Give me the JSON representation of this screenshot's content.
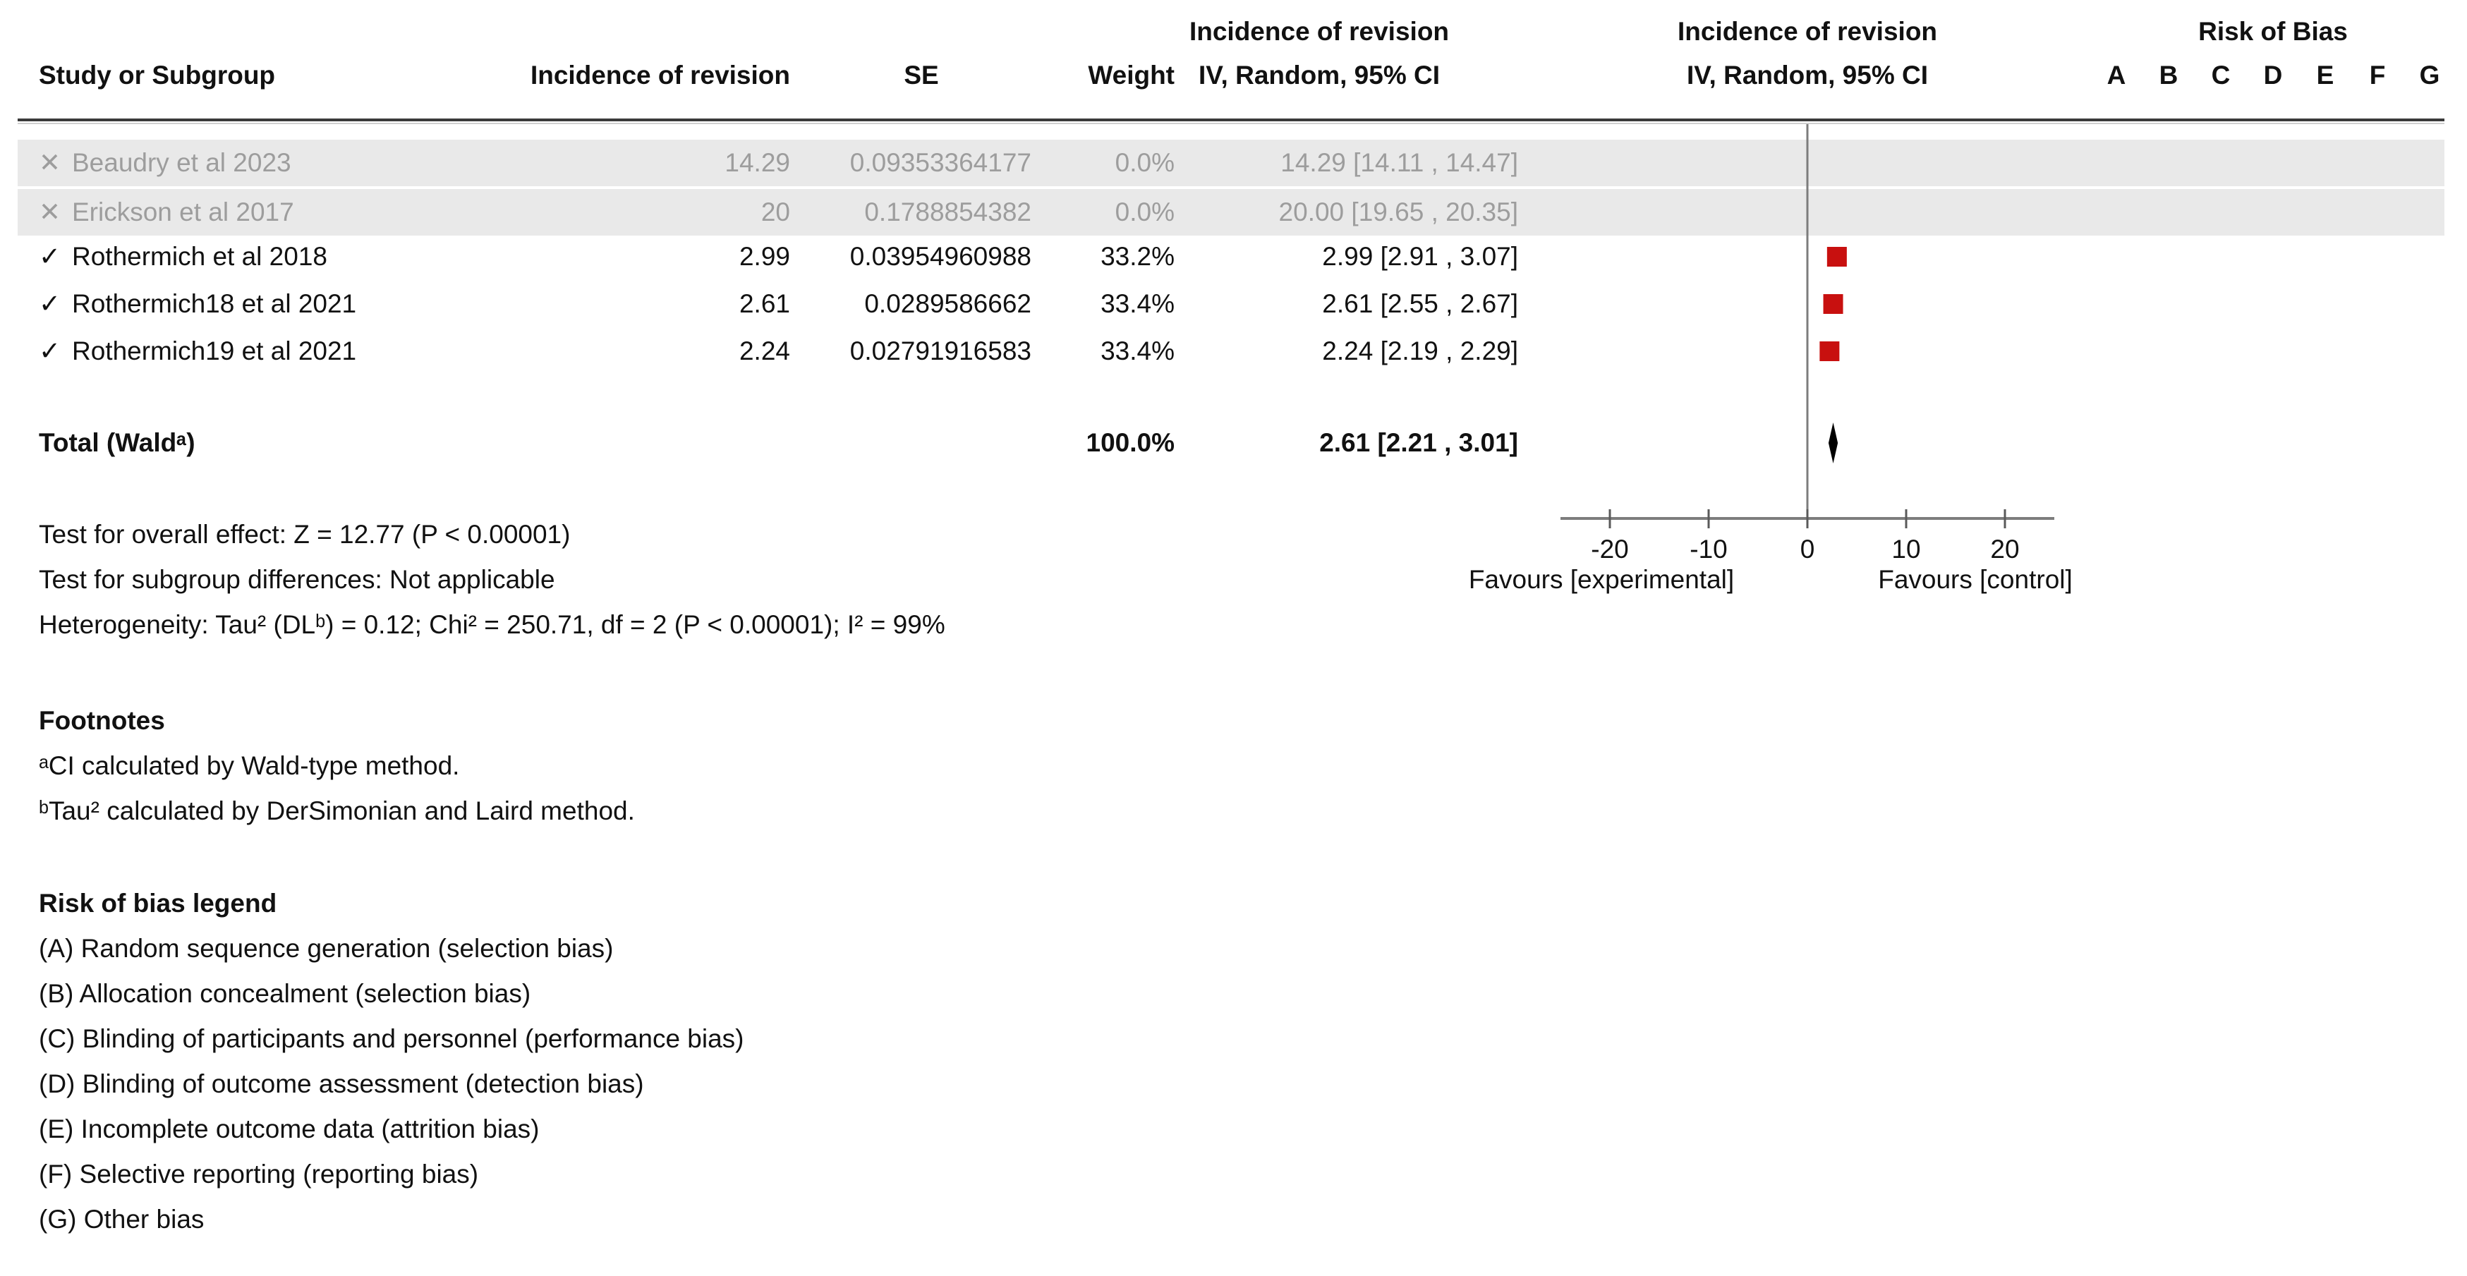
{
  "table": {
    "headers": {
      "study": "Study or Subgroup",
      "effect": "Incidence of revision",
      "se": "SE",
      "weight": "Weight",
      "ci_line1": "Incidence of revision",
      "ci_line2": "IV, Random, 95% CI",
      "plot_line1": "Incidence of revision",
      "plot_line2": "IV, Random, 95% CI",
      "rob_title": "Risk of Bias",
      "rob_columns": [
        "A",
        "B",
        "C",
        "D",
        "E",
        "F",
        "G"
      ]
    },
    "rows": [
      {
        "marker": "✕",
        "name": "Beaudry et al 2023",
        "effect": "14.29",
        "se": "0.09353364177",
        "weight": "0.0%",
        "ci": "14.29 [14.11 , 14.47]",
        "excluded": true
      },
      {
        "marker": "✕",
        "name": "Erickson et al 2017",
        "effect": "20",
        "se": "0.1788854382",
        "weight": "0.0%",
        "ci": "20.00 [19.65 , 20.35]",
        "excluded": true
      },
      {
        "marker": "✓",
        "name": "Rothermich et al 2018",
        "effect": "2.99",
        "se": "0.03954960988",
        "weight": "33.2%",
        "ci": "2.99 [2.91 , 3.07]",
        "excluded": false
      },
      {
        "marker": "✓",
        "name": "Rothermich18 et al 2021",
        "effect": "2.61",
        "se": "0.0289586662",
        "weight": "33.4%",
        "ci": "2.61 [2.55 , 2.67]",
        "excluded": false
      },
      {
        "marker": "✓",
        "name": "Rothermich19 et al 2021",
        "effect": "2.24",
        "se": "0.02791916583",
        "weight": "33.4%",
        "ci": "2.24 [2.19 , 2.29]",
        "excluded": false
      }
    ],
    "total": {
      "label": "Total (Waldᵃ)",
      "weight": "100.0%",
      "ci": "2.61 [2.21 , 3.01]"
    }
  },
  "stats": [
    "Test for overall effect: Z = 12.77 (P < 0.00001)",
    "Test for subgroup differences: Not applicable",
    "Heterogeneity: Tau² (DLᵇ) = 0.12; Chi² = 250.71, df = 2 (P < 0.00001); I² = 99%"
  ],
  "axis": {
    "ticks": [
      -20,
      -10,
      0,
      10,
      20
    ],
    "favours_left": "Favours [experimental]",
    "favours_right": "Favours [control]"
  },
  "footnotes": {
    "title": "Footnotes",
    "items": [
      "ᵃCI calculated by Wald-type method.",
      "ᵇTau² calculated by DerSimonian and Laird method."
    ]
  },
  "rob_legend": {
    "title": "Risk of bias legend",
    "items": [
      "(A) Random sequence generation (selection bias)",
      "(B) Allocation concealment (selection bias)",
      "(C) Blinding of participants and personnel (performance bias)",
      "(D) Blinding of outcome assessment (detection bias)",
      "(E) Incomplete outcome data (attrition bias)",
      "(F) Selective reporting (reporting bias)",
      "(G) Other bias"
    ]
  },
  "colors": {
    "marker_red": "#c8100f",
    "diamond": "#000000",
    "excluded_text": "#9d9d9d",
    "row_stripe": "#e9e9e9",
    "header_rule": "#3a3a3a",
    "axis_gray": "#7d7d7d",
    "text": "#111111"
  },
  "chart_data": {
    "type": "scatter",
    "title": "Incidence of revision — IV, Random, 95% CI (forest plot)",
    "xlabel": "",
    "ylabel": "",
    "x_axis": {
      "min": -25,
      "max": 25,
      "ticks": [
        -20,
        -10,
        0,
        10,
        20
      ]
    },
    "grid": false,
    "legend_position": "none",
    "points": [
      {
        "study": "Beaudry et al 2023",
        "estimate": 14.29,
        "ci": [
          14.11,
          14.47
        ],
        "se": 0.09353364177,
        "weight_pct": 0.0,
        "included": false,
        "plotted": false
      },
      {
        "study": "Erickson et al 2017",
        "estimate": 20.0,
        "ci": [
          19.65,
          20.35
        ],
        "se": 0.1788854382,
        "weight_pct": 0.0,
        "included": false,
        "plotted": false
      },
      {
        "study": "Rothermich et al 2018",
        "estimate": 2.99,
        "ci": [
          2.91,
          3.07
        ],
        "se": 0.03954960988,
        "weight_pct": 33.2,
        "included": true,
        "plotted": true
      },
      {
        "study": "Rothermich18 et al 2021",
        "estimate": 2.61,
        "ci": [
          2.55,
          2.67
        ],
        "se": 0.0289586662,
        "weight_pct": 33.4,
        "included": true,
        "plotted": true
      },
      {
        "study": "Rothermich19 et al 2021",
        "estimate": 2.24,
        "ci": [
          2.19,
          2.29
        ],
        "se": 0.02791916583,
        "weight_pct": 33.4,
        "included": true,
        "plotted": true
      }
    ],
    "total": {
      "label": "Total (Wald)",
      "estimate": 2.61,
      "ci": [
        2.21,
        3.01
      ],
      "weight_pct": 100.0
    },
    "overall_effect": {
      "Z": 12.77,
      "P": "< 0.00001"
    },
    "heterogeneity": {
      "tau2": 0.12,
      "chi2": 250.71,
      "df": 2,
      "P": "< 0.00001",
      "I2_pct": 99
    }
  }
}
